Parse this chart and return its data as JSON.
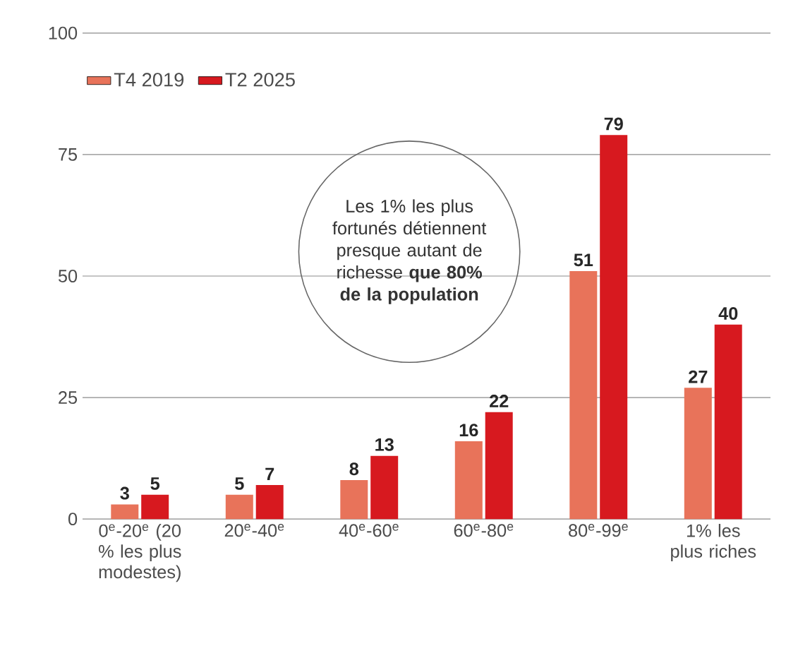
{
  "chart_data": {
    "type": "bar",
    "categories": [
      "0$^{e}$-20$^{e}$ (20 % les plus modestes)",
      "20$^{e}$-40$^{e}$",
      "40$^{e}$-60$^{e}$",
      "60$^{e}$-80$^{e}$",
      "80$^{e}$-99$^{e}$",
      "1% les plus riches"
    ],
    "series": [
      {
        "name": "T4 2019",
        "color": "#e8735a",
        "values": [
          3,
          5,
          8,
          16,
          51,
          27
        ]
      },
      {
        "name": "T2 2025",
        "color": "#d7191f",
        "values": [
          5,
          7,
          13,
          22,
          79,
          40
        ]
      }
    ],
    "ylim": [
      0,
      100
    ],
    "yticks": [
      0,
      25,
      50,
      75,
      100
    ],
    "grid": "y",
    "legend": "top left",
    "data_labels": true,
    "annotations": [
      "Les 1% les plus fortunés détiennent presque autant de richesse **que 80% de la population**"
    ]
  }
}
